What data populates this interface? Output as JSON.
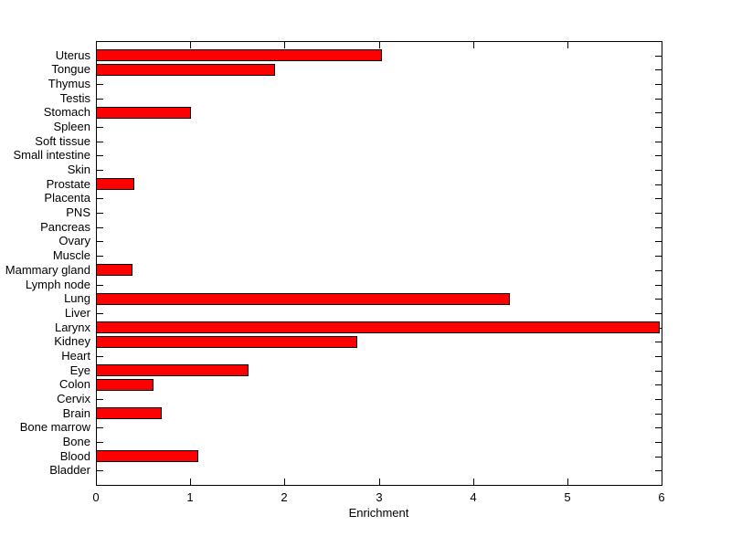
{
  "chart_data": {
    "type": "bar",
    "orientation": "horizontal",
    "title": "",
    "xlabel": "Enrichment",
    "ylabel": "",
    "xlim": [
      0,
      6
    ],
    "xticks": [
      0,
      1,
      2,
      3,
      4,
      5,
      6
    ],
    "xticklabels": [
      "0",
      "1",
      "2",
      "3",
      "4",
      "5",
      "6"
    ],
    "grid": false,
    "legend": null,
    "bar_color": "#FF0000",
    "bar_edge_color": "#000000",
    "axis_color": "#000000",
    "background_color": "#FFFFFF",
    "categories": [
      "Uterus",
      "Tongue",
      "Thymus",
      "Testis",
      "Stomach",
      "Spleen",
      "Soft tissue",
      "Small intestine",
      "Skin",
      "Prostate",
      "Placenta",
      "PNS",
      "Pancreas",
      "Ovary",
      "Muscle",
      "Mammary gland",
      "Lymph node",
      "Lung",
      "Liver",
      "Larynx",
      "Kidney",
      "Heart",
      "Eye",
      "Colon",
      "Cervix",
      "Brain",
      "Bone marrow",
      "Bone",
      "Blood",
      "Bladder"
    ],
    "values": [
      3.03,
      1.9,
      0,
      0,
      1.01,
      0,
      0,
      0,
      0,
      0.41,
      0,
      0,
      0,
      0,
      0,
      0.39,
      0,
      4.39,
      0,
      5.98,
      2.77,
      0,
      1.62,
      0.61,
      0,
      0.7,
      0,
      0,
      1.09,
      0
    ]
  }
}
